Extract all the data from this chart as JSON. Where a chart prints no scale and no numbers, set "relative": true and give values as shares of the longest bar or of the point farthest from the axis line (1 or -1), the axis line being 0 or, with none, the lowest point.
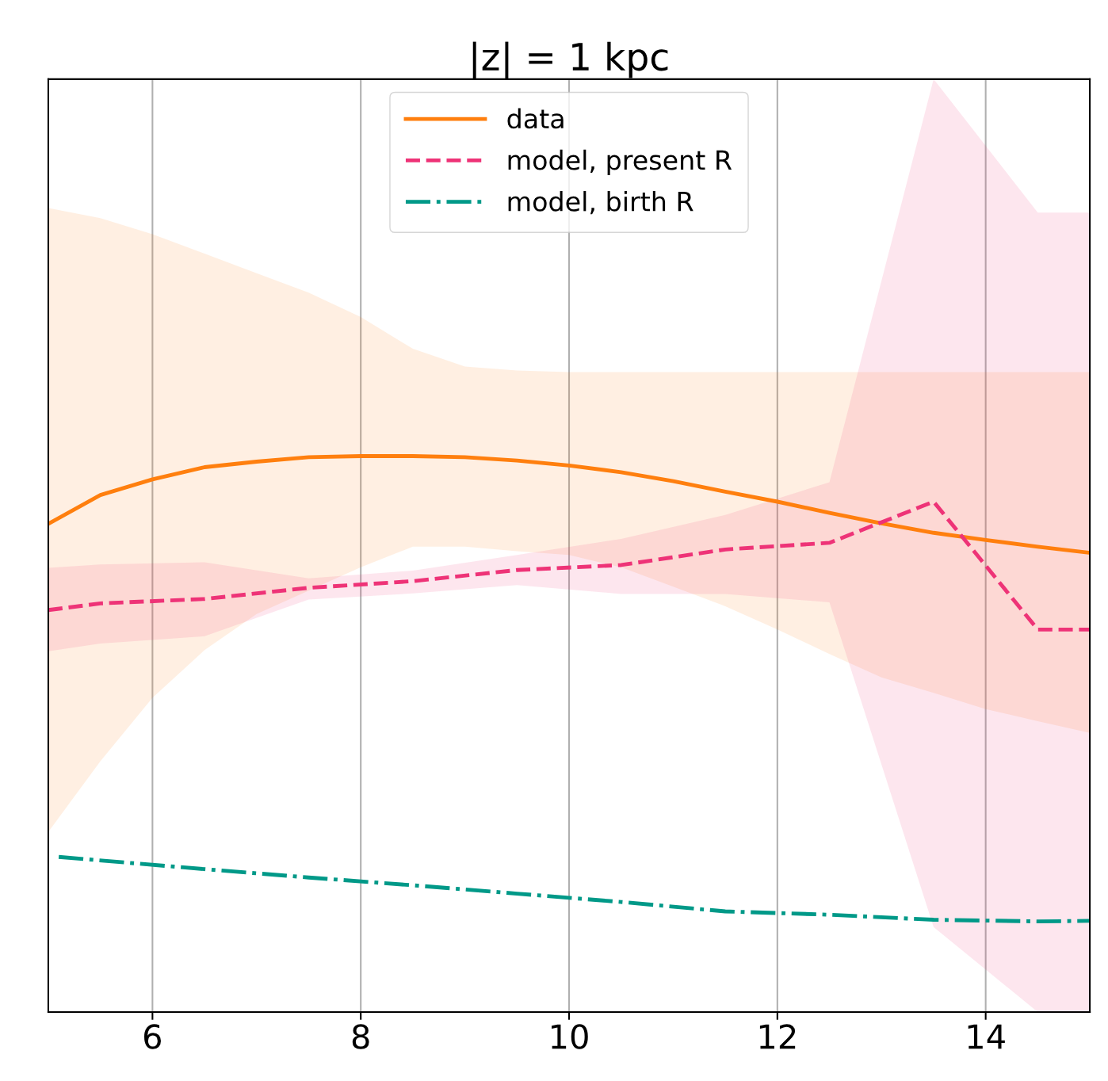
{
  "chart_data": {
    "type": "line",
    "title": "|z| = 1 kpc",
    "relative": true,
    "tick_labels": "x",
    "grid": "x",
    "legend": "top",
    "xlim": [
      5,
      15
    ],
    "xticks": [
      6,
      8,
      10,
      12,
      14
    ],
    "series": [
      {
        "name": "data",
        "color": "#ff7f0e",
        "line_style": "solid",
        "x": [
          5,
          5.5,
          6,
          6.5,
          7,
          7.5,
          8,
          8.5,
          9,
          9.5,
          10,
          10.5,
          11,
          11.5,
          12,
          12.5,
          13,
          13.5,
          14,
          14.5,
          15
        ],
        "values": [
          0.878,
          0.93,
          0.958,
          0.98,
          0.99,
          0.998,
          1,
          1,
          0.998,
          0.992,
          0.983,
          0.971,
          0.955,
          0.936,
          0.918,
          0.898,
          0.879,
          0.862,
          0.849,
          0.837,
          0.826
        ],
        "upper": [
          1.446,
          1.428,
          1.399,
          1.364,
          1.329,
          1.294,
          1.25,
          1.193,
          1.161,
          1.154,
          1.151,
          1.151,
          1.151,
          1.151,
          1.151,
          1.151,
          1.151,
          1.151,
          1.151,
          1.151,
          1.151
        ],
        "lower": [
          0.324,
          0.451,
          0.565,
          0.651,
          0.716,
          0.758,
          0.8,
          0.837,
          0.837,
          0.829,
          0.822,
          0.8,
          0.765,
          0.73,
          0.688,
          0.644,
          0.602,
          0.574,
          0.545,
          0.523,
          0.502
        ]
      },
      {
        "name": "model, present R",
        "color": "#ee3377",
        "line_style": "dashed",
        "x": [
          5,
          5.5,
          6.5,
          7.5,
          8.5,
          9.5,
          10.5,
          11.5,
          12.5,
          13.5,
          14.5,
          15
        ],
        "values": [
          0.723,
          0.735,
          0.743,
          0.763,
          0.775,
          0.795,
          0.804,
          0.832,
          0.844,
          0.918,
          0.688,
          0.688
        ],
        "upper": [
          0.799,
          0.805,
          0.809,
          0.78,
          0.794,
          0.822,
          0.851,
          0.894,
          0.953,
          1.678,
          1.438,
          1.438
        ],
        "lower": [
          0.649,
          0.663,
          0.676,
          0.742,
          0.753,
          0.768,
          0.752,
          0.752,
          0.737,
          0.153,
          0,
          0
        ]
      },
      {
        "name": "model, birth R",
        "color": "#009988",
        "line_style": "dashdot",
        "x": [
          5.1,
          6.5,
          7.5,
          8.5,
          9.5,
          10.5,
          11.5,
          12.5,
          13.5,
          14.5,
          15
        ],
        "values": [
          0.279,
          0.257,
          0.242,
          0.228,
          0.213,
          0.198,
          0.181,
          0.175,
          0.166,
          0.163,
          0.164
        ]
      }
    ]
  }
}
